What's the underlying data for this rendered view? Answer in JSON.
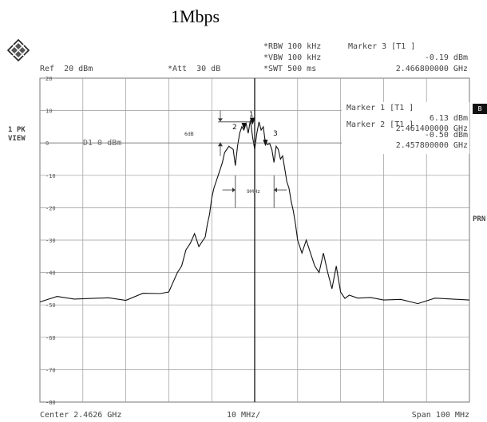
{
  "title": "1Mbps",
  "header": {
    "ref": "Ref  20 dBm",
    "att": "*Att  30 dB",
    "rbw": "*RBW 100 kHz",
    "vbw": "*VBW 100 kHz",
    "swt": "*SWT 500 ms",
    "marker3_title": "Marker 3 [T1 ]",
    "marker3_level": "-0.19 dBm",
    "marker3_freq": "2.466800000 GHz"
  },
  "markers_panel": {
    "marker1_title": "Marker 1 [T1 ]",
    "marker1_level": "6.13 dBm",
    "marker1_freq": "2.461400000 GHz",
    "marker2_title": "Marker 2 [T1 ]",
    "marker2_level": "-0.50 dBm",
    "marker2_freq": "2.457800000 GHz"
  },
  "side_labels": {
    "trace": "1 PK",
    "view": "VIEW",
    "right_b": "B",
    "right_prn": "PRN"
  },
  "display_line": "D1 0 dBm",
  "annotations": {
    "db_label": "6dB",
    "bw_label": "9MHz",
    "marker1_num": "1",
    "marker2_num": "2",
    "marker3_num": "3"
  },
  "footer": {
    "center": "Center 2.4626 GHz",
    "div": "10 MHz/",
    "span": "Span 100 MHz"
  },
  "chart_data": {
    "type": "line",
    "xlabel": "",
    "ylabel": "",
    "x_unit": "MHz offset from center",
    "xlim": [
      -50,
      50
    ],
    "ylim": [
      -80,
      20
    ],
    "yticks": [
      20,
      10,
      0,
      -10,
      -20,
      -30,
      -40,
      -50,
      -60,
      -70,
      -80
    ],
    "grid": true,
    "reference_level_dbm": 20,
    "display_line_dbm": 0,
    "series": [
      {
        "x": [
          -50,
          -46,
          -42,
          -38,
          -34,
          -30,
          -26,
          -22,
          -20,
          -19,
          -18,
          -17,
          -16,
          -15,
          -14,
          -13,
          -12,
          -11.5,
          -11,
          -10.5,
          -10,
          -9.5,
          -9,
          -8.5,
          -8,
          -7.5,
          -7,
          -6,
          -5,
          -4.5,
          -4,
          -3.5,
          -3,
          -2.5,
          -2,
          -1.5,
          -1,
          -0.5,
          0,
          0.5,
          1,
          1.5,
          2,
          2.5,
          3,
          3.5,
          4,
          4.5,
          5,
          5.5,
          6,
          6.5,
          7,
          7.5,
          8,
          8.5,
          9,
          9.5,
          10,
          11,
          12,
          13,
          14,
          15,
          16,
          17,
          18,
          19,
          20,
          21,
          22,
          24,
          27,
          30,
          34,
          38,
          42,
          46,
          50
        ],
        "y": [
          -48.5,
          -48,
          -48.5,
          -48,
          -47.5,
          -48,
          -47,
          -46.5,
          -46,
          -43,
          -40,
          -38,
          -33,
          -31,
          -28,
          -32,
          -30,
          -29,
          -25,
          -22,
          -17,
          -14,
          -12,
          -10,
          -8,
          -6,
          -3,
          -1,
          -2,
          -7,
          -1,
          3,
          5,
          4,
          6,
          3,
          7,
          2,
          -2,
          3,
          6.5,
          4,
          5,
          0,
          -0.5,
          -0.2,
          -2,
          -6,
          -1,
          -2,
          -5,
          -4,
          -8,
          -12,
          -14,
          -18,
          -21,
          -25,
          -30,
          -34,
          -30,
          -34,
          -38,
          -40,
          -34,
          -40,
          -45,
          -38,
          -46,
          -48,
          -47,
          -48.5,
          -48,
          -48.5,
          -48,
          -49,
          -48.5,
          -48.5,
          -48.5
        ]
      }
    ]
  }
}
